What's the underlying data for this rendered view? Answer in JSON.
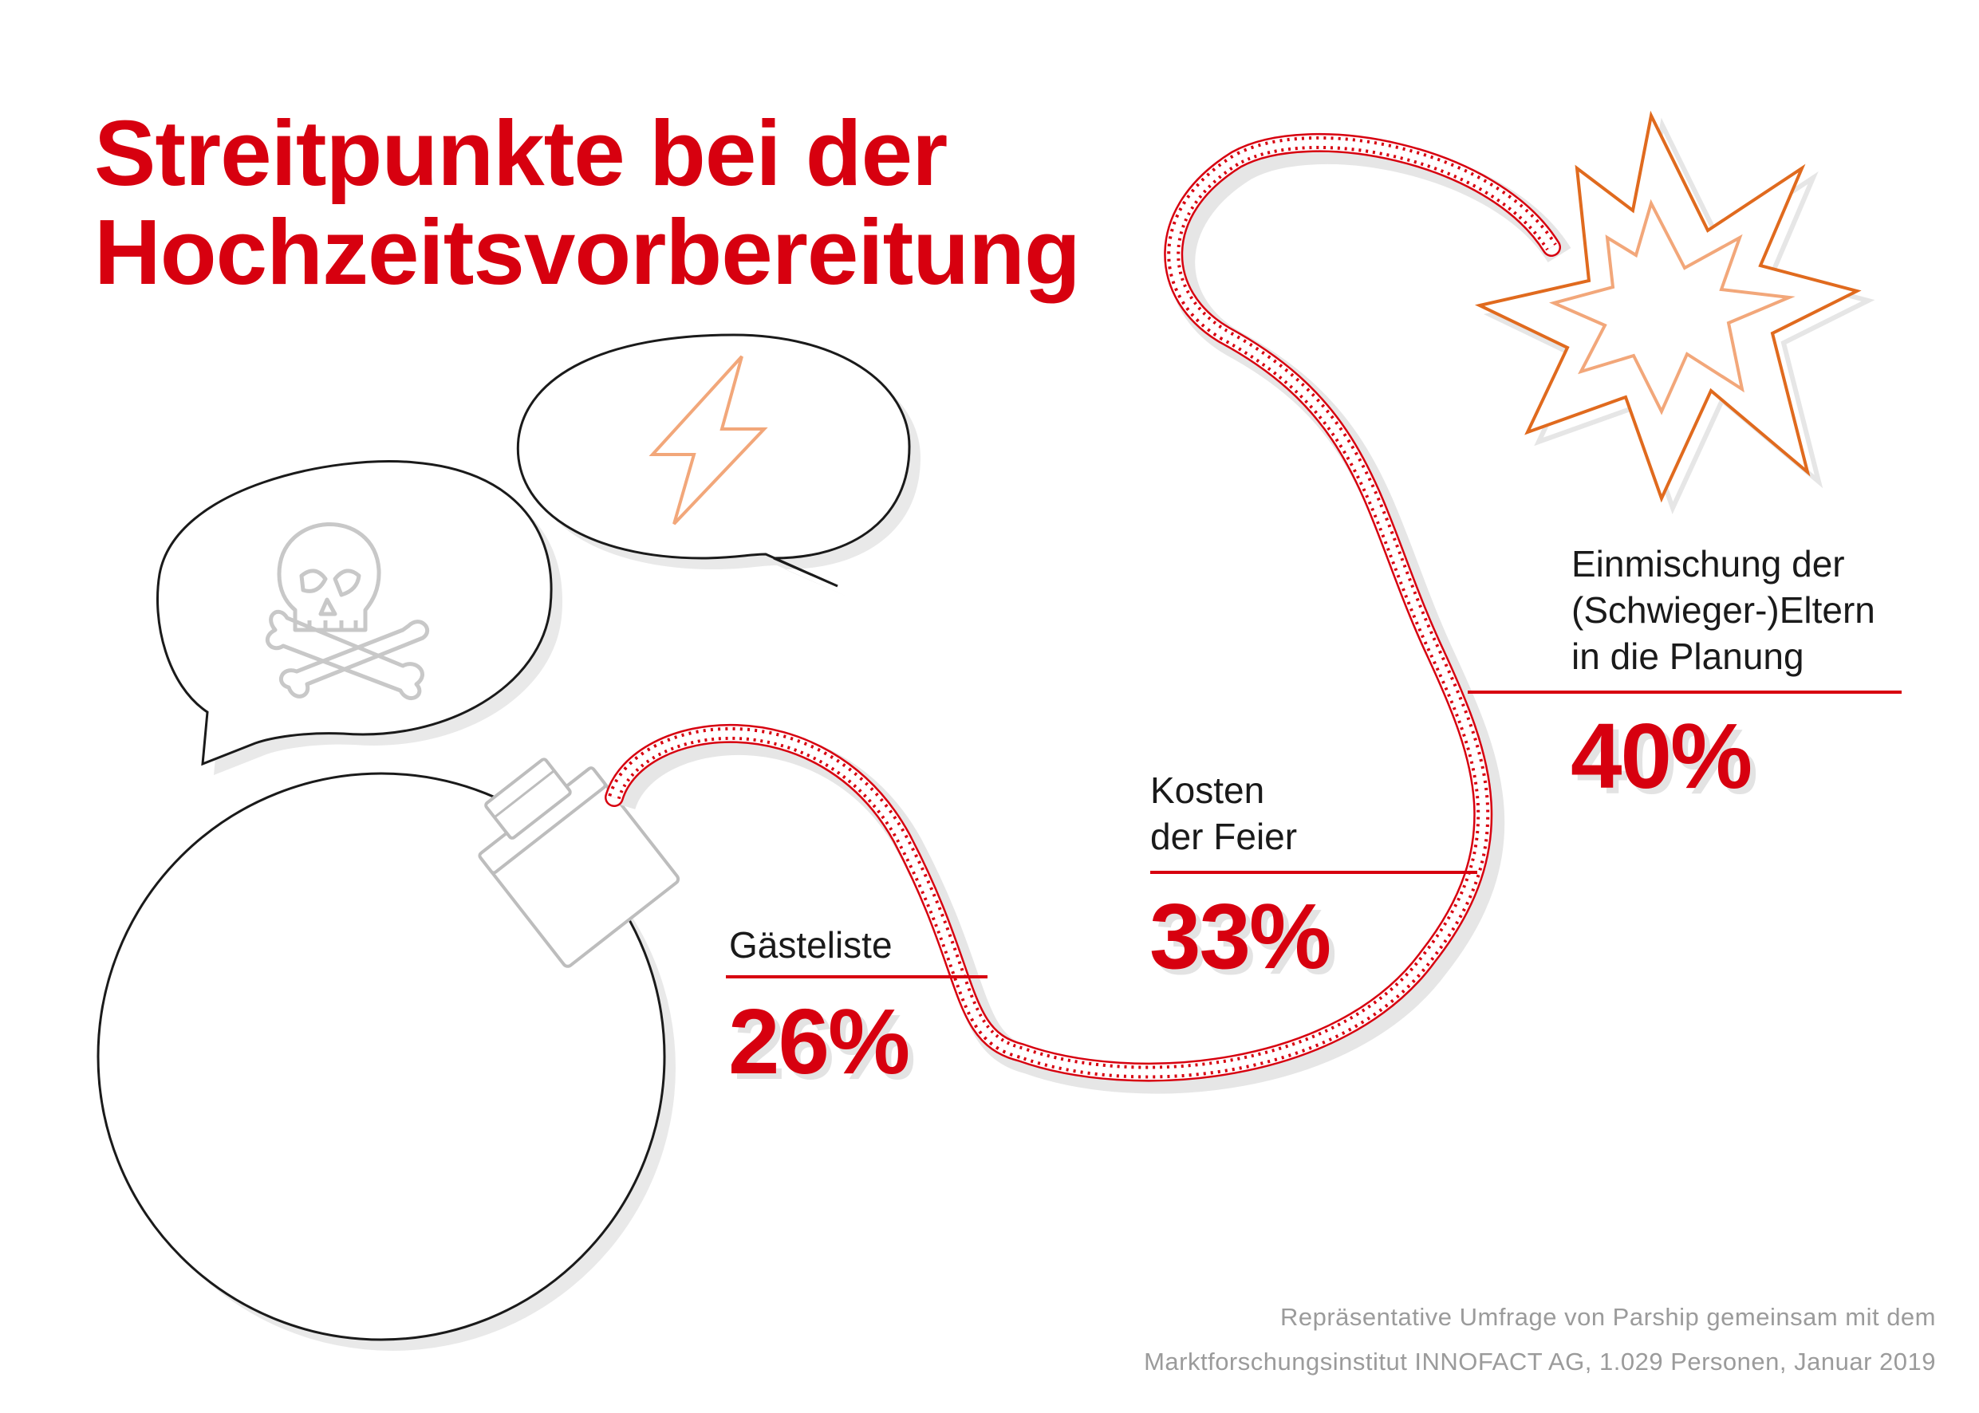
{
  "title": {
    "line1": "Streitpunkte bei der",
    "line2": "Hochzeitsvorbereitung"
  },
  "source": {
    "line1": "Repräsentative Umfrage von Parship gemeinsam mit dem",
    "line2": "Marktforschungsinstitut INNOFACT AG, 1.029 Personen, Januar 2019"
  },
  "colors": {
    "accent": "#d7000f",
    "spark": "#e06a1e",
    "spark_light": "#f2a77a",
    "outline": "#1a1a1a",
    "icon_grey": "#c8c8c8",
    "shadow": "#e3e3e3"
  },
  "icons": [
    "bomb-icon",
    "fuse-icon",
    "skull-crossbones-icon",
    "lightning-icon",
    "explosion-icon"
  ],
  "chart_data": {
    "type": "bar",
    "categories": [
      "Gästeliste",
      "Kosten\nder Feier",
      "Einmischung der\n(Schwieger-)Eltern\nin die Planung"
    ],
    "values": [
      26,
      33,
      40
    ],
    "value_labels": [
      "26%",
      "33%",
      "40%"
    ],
    "unit": "%"
  }
}
